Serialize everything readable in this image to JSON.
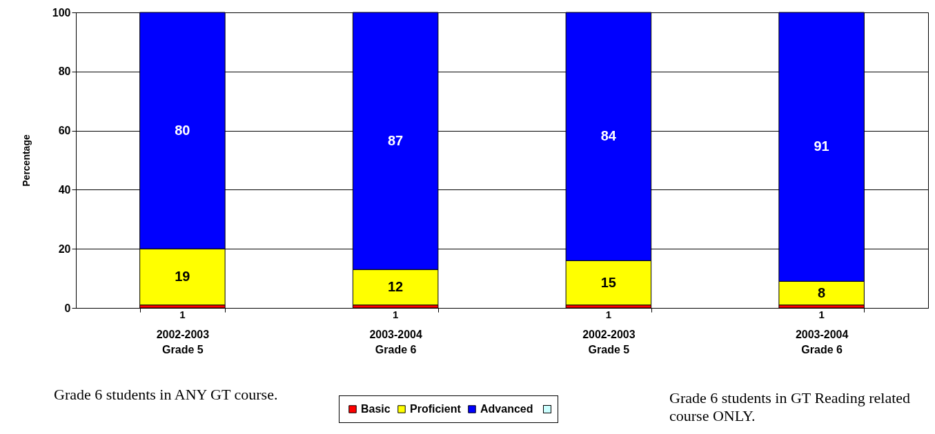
{
  "chart_data": {
    "type": "bar",
    "stacked": true,
    "ylabel": "Percentage",
    "categories": [
      "2002-2003\nGrade 5",
      "2003-2004\nGrade 6",
      "2002-2003\nGrade 5",
      "2003-2004\nGrade 6"
    ],
    "series": [
      {
        "name": "Basic",
        "color": "#ff0000",
        "values": [
          1,
          1,
          1,
          1
        ]
      },
      {
        "name": "Proficient",
        "color": "#ffff00",
        "values": [
          19,
          12,
          15,
          8
        ]
      },
      {
        "name": "Advanced",
        "color": "#0000ff",
        "values": [
          80,
          87,
          84,
          91
        ]
      }
    ],
    "ylim": [
      0,
      100
    ],
    "yticks": [
      0,
      20,
      40,
      60,
      80,
      100
    ],
    "grid": "y",
    "legend": "bottom",
    "data_labels": true,
    "annotations": [
      "Grade 6 students in ANY GT course.",
      "Grade 6 students in GT Reading related course ONLY."
    ]
  }
}
